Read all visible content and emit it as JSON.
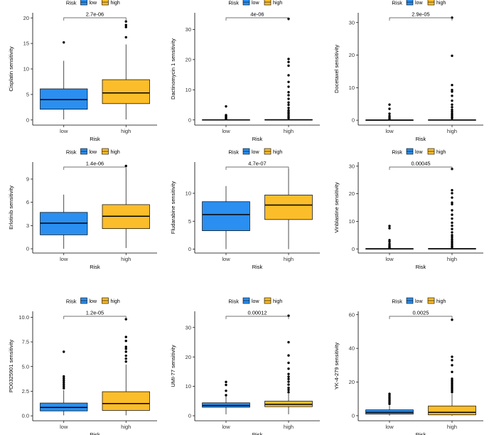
{
  "colors": {
    "low": "#2a8ff0",
    "high": "#fbbd2a",
    "axis": "#000000",
    "bracket": "#444444",
    "text": "#333333"
  },
  "legend": {
    "title": "Risk",
    "low_label": "low",
    "high_label": "high"
  },
  "xlabel": "Risk",
  "chart_data": [
    {
      "type": "box",
      "title": "",
      "ylabel": "Cisplatin sensitivity",
      "ylim": [
        -1,
        21
      ],
      "yticks": [
        0,
        5,
        10,
        15,
        20
      ],
      "categories": [
        "low",
        "high"
      ],
      "pvalue": "2.7e-06",
      "series": [
        {
          "name": "low",
          "min": 0.1,
          "q1": 2.1,
          "median": 4.0,
          "q3": 6.1,
          "max": 11.6,
          "outliers": [
            15.2
          ]
        },
        {
          "name": "high",
          "min": 0.1,
          "q1": 3.2,
          "median": 5.3,
          "q3": 7.9,
          "max": 14.8,
          "outliers": [
            16.2,
            18.2,
            18.6,
            19.3
          ]
        }
      ]
    },
    {
      "type": "box",
      "title": "",
      "ylabel": "Dactinomycin 1 sensitivity",
      "ylim": [
        -1.7,
        35.5
      ],
      "yticks": [
        0,
        10,
        20,
        30
      ],
      "categories": [
        "low",
        "high"
      ],
      "pvalue": "4e-06",
      "series": [
        {
          "name": "low",
          "min": 0.0,
          "q1": 0.0,
          "median": 0.05,
          "q3": 0.1,
          "max": 0.2,
          "outliers": [
            0.4,
            0.7,
            1.0,
            1.3,
            1.6,
            4.5
          ]
        },
        {
          "name": "high",
          "min": 0.0,
          "q1": 0.0,
          "median": 0.05,
          "q3": 0.15,
          "max": 0.3,
          "outliers": [
            0.6,
            1.0,
            1.5,
            2.1,
            2.6,
            3.2,
            4.0,
            5.0,
            5.8,
            7.0,
            8.2,
            9.2,
            11.0,
            12.6,
            14.8,
            18.0,
            19.2,
            20.2,
            33.5
          ]
        }
      ]
    },
    {
      "type": "box",
      "title": "",
      "ylabel": "Docetaxel sensitivity",
      "ylim": [
        -1.5,
        33
      ],
      "yticks": [
        0,
        10,
        20,
        30
      ],
      "categories": [
        "low",
        "high"
      ],
      "pvalue": "2.9e-05",
      "series": [
        {
          "name": "low",
          "min": 0.0,
          "q1": 0.0,
          "median": 0.05,
          "q3": 0.1,
          "max": 0.2,
          "outliers": [
            0.4,
            0.8,
            1.3,
            2.0,
            3.5,
            4.8
          ]
        },
        {
          "name": "high",
          "min": 0.0,
          "q1": 0.0,
          "median": 0.05,
          "q3": 0.15,
          "max": 0.3,
          "outliers": [
            0.6,
            1.0,
            1.5,
            2.0,
            2.6,
            3.2,
            4.0,
            4.8,
            6.0,
            7.5,
            8.8,
            9.3,
            10.8,
            19.8,
            31.5
          ]
        }
      ]
    },
    {
      "type": "box",
      "title": "",
      "ylabel": "Erlotinib sensitivity",
      "ylim": [
        -0.55,
        11.2
      ],
      "yticks": [
        0,
        3,
        6,
        9
      ],
      "categories": [
        "low",
        "high"
      ],
      "pvalue": "1.4e-06",
      "series": [
        {
          "name": "low",
          "min": 0.0,
          "q1": 1.8,
          "median": 3.3,
          "q3": 4.7,
          "max": 7.0,
          "outliers": []
        },
        {
          "name": "high",
          "min": 0.1,
          "q1": 2.6,
          "median": 4.2,
          "q3": 5.7,
          "max": 10.4,
          "outliers": [
            10.7
          ]
        }
      ]
    },
    {
      "type": "box",
      "title": "",
      "ylabel": "Fludarabine sensitivity",
      "ylim": [
        -0.7,
        15.6
      ],
      "yticks": [
        0,
        5,
        10
      ],
      "categories": [
        "low",
        "high"
      ],
      "pvalue": "4.7e-07",
      "series": [
        {
          "name": "low",
          "min": 0.0,
          "q1": 3.3,
          "median": 6.2,
          "q3": 8.5,
          "max": 11.3,
          "outliers": []
        },
        {
          "name": "high",
          "min": 0.0,
          "q1": 5.3,
          "median": 7.9,
          "q3": 9.7,
          "max": 14.4,
          "outliers": []
        }
      ]
    },
    {
      "type": "box",
      "title": "",
      "ylabel": "Vinblastine sensitivity",
      "ylim": [
        -1.5,
        31.5
      ],
      "yticks": [
        0,
        10,
        20,
        30
      ],
      "categories": [
        "low",
        "high"
      ],
      "pvalue": "0.00045",
      "series": [
        {
          "name": "low",
          "min": 0.0,
          "q1": 0.0,
          "median": 0.05,
          "q3": 0.1,
          "max": 0.2,
          "outliers": [
            0.4,
            0.8,
            1.2,
            1.8,
            2.6,
            3.2,
            7.5,
            8.3
          ]
        },
        {
          "name": "high",
          "min": 0.0,
          "q1": 0.0,
          "median": 0.05,
          "q3": 0.15,
          "max": 0.3,
          "outliers": [
            0.6,
            1.0,
            1.6,
            2.2,
            2.8,
            3.5,
            4.3,
            5.0,
            6.0,
            7.2,
            8.4,
            9.5,
            11.0,
            12.4,
            14.0,
            16.2,
            16.8,
            18.6,
            20.2,
            21.3,
            29.0
          ]
        }
      ]
    },
    {
      "type": "box",
      "title": "",
      "ylabel": "PD0325901 sensitivity",
      "ylim": [
        -0.5,
        10.6
      ],
      "yticks": [
        0.0,
        2.5,
        5.0,
        7.5,
        10.0
      ],
      "categories": [
        "low",
        "high"
      ],
      "pvalue": "1.2e-05",
      "series": [
        {
          "name": "low",
          "min": 0.05,
          "q1": 0.5,
          "median": 0.85,
          "q3": 1.3,
          "max": 2.6,
          "outliers": [
            2.8,
            3.0,
            3.2,
            3.4,
            3.6,
            3.8,
            4.0,
            6.5
          ]
        },
        {
          "name": "high",
          "min": 0.05,
          "q1": 0.55,
          "median": 1.25,
          "q3": 2.45,
          "max": 5.2,
          "outliers": [
            5.5,
            5.8,
            6.1,
            6.5,
            6.8,
            7.0,
            7.6,
            8.0,
            9.8
          ]
        }
      ]
    },
    {
      "type": "box",
      "title": "",
      "ylabel": "UMI-77 sensitivity",
      "ylim": [
        -1.7,
        35.5
      ],
      "yticks": [
        0,
        10,
        20,
        30
      ],
      "categories": [
        "low",
        "high"
      ],
      "pvalue": "0.00012",
      "series": [
        {
          "name": "low",
          "min": 0.5,
          "q1": 2.9,
          "median": 3.5,
          "q3": 4.4,
          "max": 6.6,
          "outliers": [
            7.0,
            8.5,
            10.5,
            11.5
          ]
        },
        {
          "name": "high",
          "min": 0.5,
          "q1": 3.1,
          "median": 3.9,
          "q3": 5.0,
          "max": 7.5,
          "outliers": [
            8.0,
            8.8,
            9.5,
            10.6,
            11.6,
            12.5,
            13.3,
            14.2,
            16.0,
            18.0,
            20.5,
            25.0,
            34.0
          ]
        }
      ]
    },
    {
      "type": "box",
      "title": "",
      "ylabel": "YK-4-279 sensitivity",
      "ylim": [
        -3,
        62
      ],
      "yticks": [
        0,
        20,
        40,
        60
      ],
      "categories": [
        "low",
        "high"
      ],
      "pvalue": "0.0025",
      "series": [
        {
          "name": "low",
          "min": 0.0,
          "q1": 1.0,
          "median": 2.0,
          "q3": 3.5,
          "max": 6.0,
          "outliers": [
            7.0,
            8.0,
            9.0,
            10.0,
            11.0,
            12.0,
            13.0
          ]
        },
        {
          "name": "high",
          "min": 0.0,
          "q1": 0.5,
          "median": 2.0,
          "q3": 5.8,
          "max": 13.0,
          "outliers": [
            14.0,
            15.0,
            16.0,
            17.0,
            18.0,
            19.0,
            20.0,
            21.0,
            22.0,
            26.0,
            30.0,
            33.0,
            35.0,
            57.0
          ]
        }
      ]
    }
  ]
}
